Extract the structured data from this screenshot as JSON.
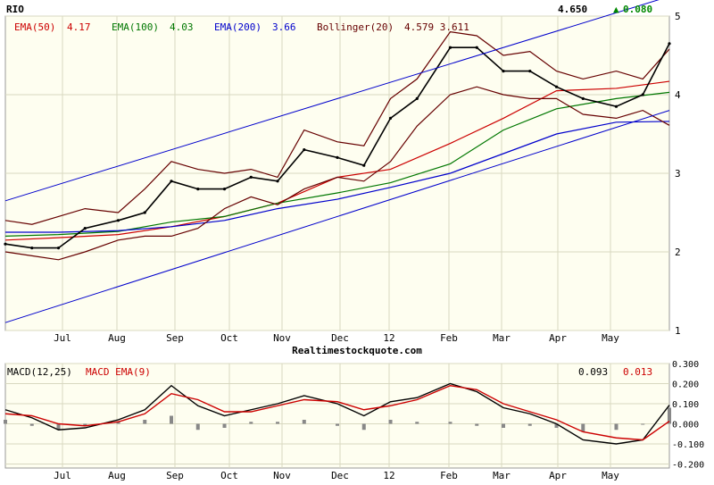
{
  "chart_data": [
    {
      "type": "line",
      "title": "RIO",
      "subtitle": "Realtimestockquote.com",
      "last_price": "4.650",
      "change": "0.080",
      "change_symbol": "▲",
      "x_tick_labels": [
        "Jul",
        "Aug",
        "Sep",
        "Oct",
        "Nov",
        "Dec",
        "12",
        "Feb",
        "Mar",
        "Apr",
        "May"
      ],
      "y_tick_labels": [
        "1",
        "2",
        "3",
        "4",
        "5"
      ],
      "ylim": [
        1,
        5
      ],
      "grid": true,
      "legend": [
        {
          "label": "EMA(50)",
          "value": "4.17",
          "color": "#cc0000"
        },
        {
          "label": "EMA(100)",
          "value": "4.03",
          "color": "#007700"
        },
        {
          "label": "EMA(200)",
          "value": "3.66",
          "color": "#0000cc"
        },
        {
          "label": "Bollinger(20)",
          "value": "4.579 3.611",
          "color": "#660000"
        }
      ],
      "colors": {
        "background": "#fefef0",
        "grid": "#d8d8c0",
        "price_bar": "#000000",
        "price_bar_down": "#cc0000",
        "channel": "#0000cc"
      },
      "series": [
        {
          "name": "EMA(50)",
          "x": [
            0,
            8,
            17,
            25,
            33,
            41,
            50,
            58,
            67,
            75,
            83,
            92,
            100
          ],
          "y": [
            2.15,
            2.18,
            2.22,
            2.32,
            2.45,
            2.62,
            2.95,
            3.05,
            3.38,
            3.7,
            4.05,
            4.08,
            4.17
          ]
        },
        {
          "name": "EMA(100)",
          "x": [
            0,
            8,
            17,
            25,
            33,
            41,
            50,
            58,
            67,
            75,
            83,
            92,
            100
          ],
          "y": [
            2.2,
            2.22,
            2.26,
            2.38,
            2.45,
            2.62,
            2.75,
            2.88,
            3.12,
            3.55,
            3.82,
            3.95,
            4.03
          ]
        },
        {
          "name": "EMA(200)",
          "x": [
            0,
            8,
            17,
            25,
            33,
            41,
            50,
            58,
            67,
            75,
            83,
            92,
            100
          ],
          "y": [
            2.25,
            2.25,
            2.27,
            2.32,
            2.4,
            2.55,
            2.67,
            2.82,
            3.0,
            3.25,
            3.5,
            3.65,
            3.66
          ]
        },
        {
          "name": "Bollinger(20)",
          "x": [
            0,
            4,
            8,
            12,
            17,
            21,
            25,
            29,
            33,
            37,
            41,
            45,
            50,
            54,
            58,
            62,
            67,
            71,
            75,
            79,
            83,
            87,
            92,
            96,
            100
          ],
          "y": [
            2.4,
            2.35,
            2.45,
            2.55,
            2.5,
            2.8,
            3.15,
            3.05,
            3.0,
            3.05,
            2.95,
            3.55,
            3.4,
            3.35,
            3.95,
            4.2,
            4.8,
            4.75,
            4.5,
            4.55,
            4.3,
            4.2,
            4.3,
            4.2,
            4.58
          ]
        },
        {
          "name": "Bollinger(20) lower",
          "x": [
            0,
            4,
            8,
            12,
            17,
            21,
            25,
            29,
            33,
            37,
            41,
            45,
            50,
            54,
            58,
            62,
            67,
            71,
            75,
            79,
            83,
            87,
            92,
            96,
            100
          ],
          "y": [
            2.0,
            1.95,
            1.9,
            2.0,
            2.15,
            2.2,
            2.2,
            2.3,
            2.55,
            2.7,
            2.6,
            2.8,
            2.95,
            2.9,
            3.15,
            3.6,
            4.0,
            4.1,
            4.0,
            3.95,
            3.95,
            3.75,
            3.7,
            3.8,
            3.61
          ]
        },
        {
          "name": "Price",
          "x": [
            0,
            4,
            8,
            12,
            17,
            21,
            25,
            29,
            33,
            37,
            41,
            45,
            50,
            54,
            58,
            62,
            67,
            71,
            75,
            79,
            83,
            87,
            92,
            96,
            100
          ],
          "y": [
            2.1,
            2.05,
            2.05,
            2.3,
            2.4,
            2.5,
            2.9,
            2.8,
            2.8,
            2.95,
            2.9,
            3.3,
            3.2,
            3.1,
            3.7,
            3.95,
            4.6,
            4.6,
            4.3,
            4.3,
            4.1,
            3.95,
            3.85,
            4.0,
            4.65
          ]
        },
        {
          "name": "Channel upper",
          "x": [
            0,
            100
          ],
          "y": [
            2.65,
            5.25
          ]
        },
        {
          "name": "Channel lower",
          "x": [
            0,
            100
          ],
          "y": [
            1.1,
            3.8
          ]
        }
      ]
    },
    {
      "type": "line",
      "title": "MACD(12,25)",
      "legend": [
        {
          "label": "MACD(12,25)",
          "value": "0.093",
          "color": "#000000"
        },
        {
          "label": "MACD EMA(9)",
          "value": "0.013",
          "color": "#cc0000"
        }
      ],
      "x_tick_labels": [
        "Jul",
        "Aug",
        "Sep",
        "Oct",
        "Nov",
        "Dec",
        "12",
        "Feb",
        "Mar",
        "Apr",
        "May"
      ],
      "y_tick_labels": [
        "0.300",
        "0.200",
        "0.100",
        "0.000",
        "-0.100",
        "-0.200"
      ],
      "ylim": [
        -0.22,
        0.3
      ],
      "grid": true,
      "series": [
        {
          "name": "MACD(12,25)",
          "x": [
            0,
            4,
            8,
            12,
            17,
            21,
            25,
            29,
            33,
            37,
            41,
            45,
            50,
            54,
            58,
            62,
            67,
            71,
            75,
            79,
            83,
            87,
            92,
            96,
            100
          ],
          "y": [
            0.07,
            0.03,
            -0.03,
            -0.02,
            0.02,
            0.07,
            0.19,
            0.09,
            0.04,
            0.07,
            0.1,
            0.14,
            0.1,
            0.04,
            0.11,
            0.13,
            0.2,
            0.16,
            0.08,
            0.05,
            0.0,
            -0.08,
            -0.1,
            -0.08,
            0.093
          ]
        },
        {
          "name": "MACD EMA(9)",
          "x": [
            0,
            4,
            8,
            12,
            17,
            21,
            25,
            29,
            33,
            37,
            41,
            45,
            50,
            54,
            58,
            62,
            67,
            71,
            75,
            79,
            83,
            87,
            92,
            96,
            100
          ],
          "y": [
            0.05,
            0.04,
            0.0,
            -0.01,
            0.01,
            0.05,
            0.15,
            0.12,
            0.06,
            0.06,
            0.09,
            0.12,
            0.11,
            0.07,
            0.09,
            0.12,
            0.19,
            0.17,
            0.1,
            0.06,
            0.02,
            -0.04,
            -0.07,
            -0.08,
            0.013
          ]
        },
        {
          "name": "Histogram",
          "x": [
            0,
            4,
            8,
            12,
            17,
            21,
            25,
            29,
            33,
            37,
            41,
            45,
            50,
            54,
            58,
            62,
            67,
            71,
            75,
            79,
            83,
            87,
            92,
            96,
            100
          ],
          "y": [
            0.02,
            -0.01,
            -0.03,
            -0.01,
            0.01,
            0.02,
            0.04,
            -0.03,
            -0.02,
            0.01,
            0.01,
            0.02,
            -0.01,
            -0.03,
            0.02,
            0.01,
            0.01,
            -0.01,
            -0.02,
            -0.01,
            -0.02,
            -0.04,
            -0.03,
            0.0,
            0.08
          ]
        }
      ]
    }
  ]
}
